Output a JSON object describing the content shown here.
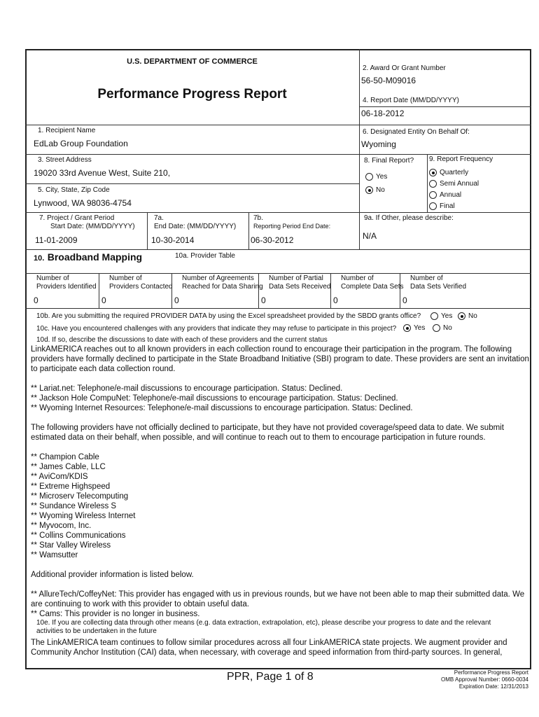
{
  "header": {
    "department": "U.S. DEPARTMENT OF COMMERCE",
    "title": "Performance Progress Report"
  },
  "fields": {
    "award_label": "2. Award Or Grant Number",
    "award_value": "56-50-M09016",
    "report_date_label": "4. Report Date (MM/DD/YYYY)",
    "report_date_value": "06-18-2012",
    "recipient_label": "1. Recipient Name",
    "recipient_value": "EdLab Group Foundation",
    "entity_label": "6. Designated Entity On Behalf Of:",
    "entity_value": "Wyoming",
    "street_label": "3. Street Address",
    "street_value": "19020 33rd Avenue West, Suite 210,",
    "city_label": "5. City, State, Zip Code",
    "city_value": "Lynwood, WA 98036-4754",
    "final_label": "8. Final Report?",
    "final_options": [
      {
        "label": "Yes",
        "checked": false
      },
      {
        "label": "No",
        "checked": true
      }
    ],
    "freq_label": "9. Report Frequency",
    "freq_options": [
      {
        "label": "Quarterly",
        "checked": true
      },
      {
        "label": "Semi Annual",
        "checked": false
      },
      {
        "label": "Annual",
        "checked": false
      },
      {
        "label": "Final",
        "checked": false
      }
    ],
    "start_label1": "7.  Project / Grant Period",
    "start_label2": "Start Date: (MM/DD/YYYY)",
    "start_value": "11-01-2009",
    "end_label1": "7a.",
    "end_label2": "End Date: (MM/DD/YYYY)",
    "end_value": "10-30-2014",
    "rp_label1": "7b.",
    "rp_label2": "Reporting Period End Date:",
    "rp_value": "06-30-2012",
    "other_label": "9a. If Other, please describe:",
    "other_value": "N/A"
  },
  "section10": {
    "num": "10.",
    "title": "Broadband  Mapping",
    "table_label": "10a. Provider Table",
    "columns": [
      {
        "h1": "Number of",
        "h2": "Providers Identified",
        "v": "0"
      },
      {
        "h1": "Number of",
        "h2": "Providers Contacted",
        "v": "0"
      },
      {
        "h1": "Number of Agreements",
        "h2": "Reached for Data Sharing",
        "v": "0"
      },
      {
        "h1": "Number of Partial",
        "h2": "Data Sets Received",
        "v": "0"
      },
      {
        "h1": "Number of",
        "h2": "Complete Data Sets",
        "v": "0"
      },
      {
        "h1": "Number of",
        "h2": "Data Sets Verified",
        "v": "0"
      }
    ],
    "q10b": "10b. Are you submitting the required PROVIDER DATA by using the Excel spreadsheet provided by the SBDD grants office?",
    "q10b_options": [
      {
        "label": "Yes",
        "checked": false
      },
      {
        "label": "No",
        "checked": true
      }
    ],
    "q10c": "10c. Have you encountered challenges with any providers that indicate they may refuse to participate in this project?",
    "q10c_options": [
      {
        "label": "Yes",
        "checked": true
      },
      {
        "label": "No",
        "checked": false
      }
    ],
    "q10d": "10d. If so, describe the discussions to date with each of these providers and the current status",
    "p1": "LinkAMERICA reaches out to all known providers in each collection round to encourage their participation in the program.  The following providers have formally declined to participate in the State Broadband Initiative (SBI) program to date. These providers are sent an invitation to participate each data collection round.",
    "declined": [
      "** Lariat.net: Telephone/e-mail discussions to encourage participation.  Status: Declined.",
      "** Jackson Hole CompuNet: Telephone/e-mail discussions to encourage participation.  Status: Declined.",
      "** Wyoming Internet Resources: Telephone/e-mail discussions to encourage participation.  Status:  Declined."
    ],
    "p2": "The following providers have not officially declined to participate, but they have not provided coverage/speed data to date.  We submit estimated data on their behalf, when possible, and will continue to reach out to them to encourage participation in future rounds.",
    "pending": [
      "** Champion Cable",
      "** James Cable, LLC",
      "** AviCom/KDIS",
      "** Extreme Highspeed",
      "** Microserv Telecomputing",
      "** Sundance Wireless S",
      "** Wyoming Wireless Internet",
      "** Myvocom, Inc.",
      "** Collins Communications",
      "** Star Valley Wireless",
      "** Wamsutter"
    ],
    "p3": "Additional provider information is listed below.",
    "additional": [
      "** AllureTech/CoffeyNet: This provider has engaged with us in previous rounds, but we have not been able to map their submitted data.  We are continuing to work with this provider to obtain useful data.",
      "** Cams: This provider is no longer in business."
    ],
    "q10e": "10e. If you are collecting data through other means (e.g. data extraction, extrapolation, etc), please describe your progress to date and the relevant activities to be undertaken in the future",
    "p4": "The LinkAMERICA team continues to follow similar procedures across all four LinkAMERICA state projects.  We augment provider and Community Anchor Institution (CAI) data, when necessary, with coverage and speed information from third-party sources.  In general,"
  },
  "footer": {
    "page": "PPR,  Page 1 of 8",
    "line1": "Performance Progress Report",
    "line2": "OMB Approval Number: 0660-0034",
    "line3": "Expiration Date:  12/31/2013"
  }
}
